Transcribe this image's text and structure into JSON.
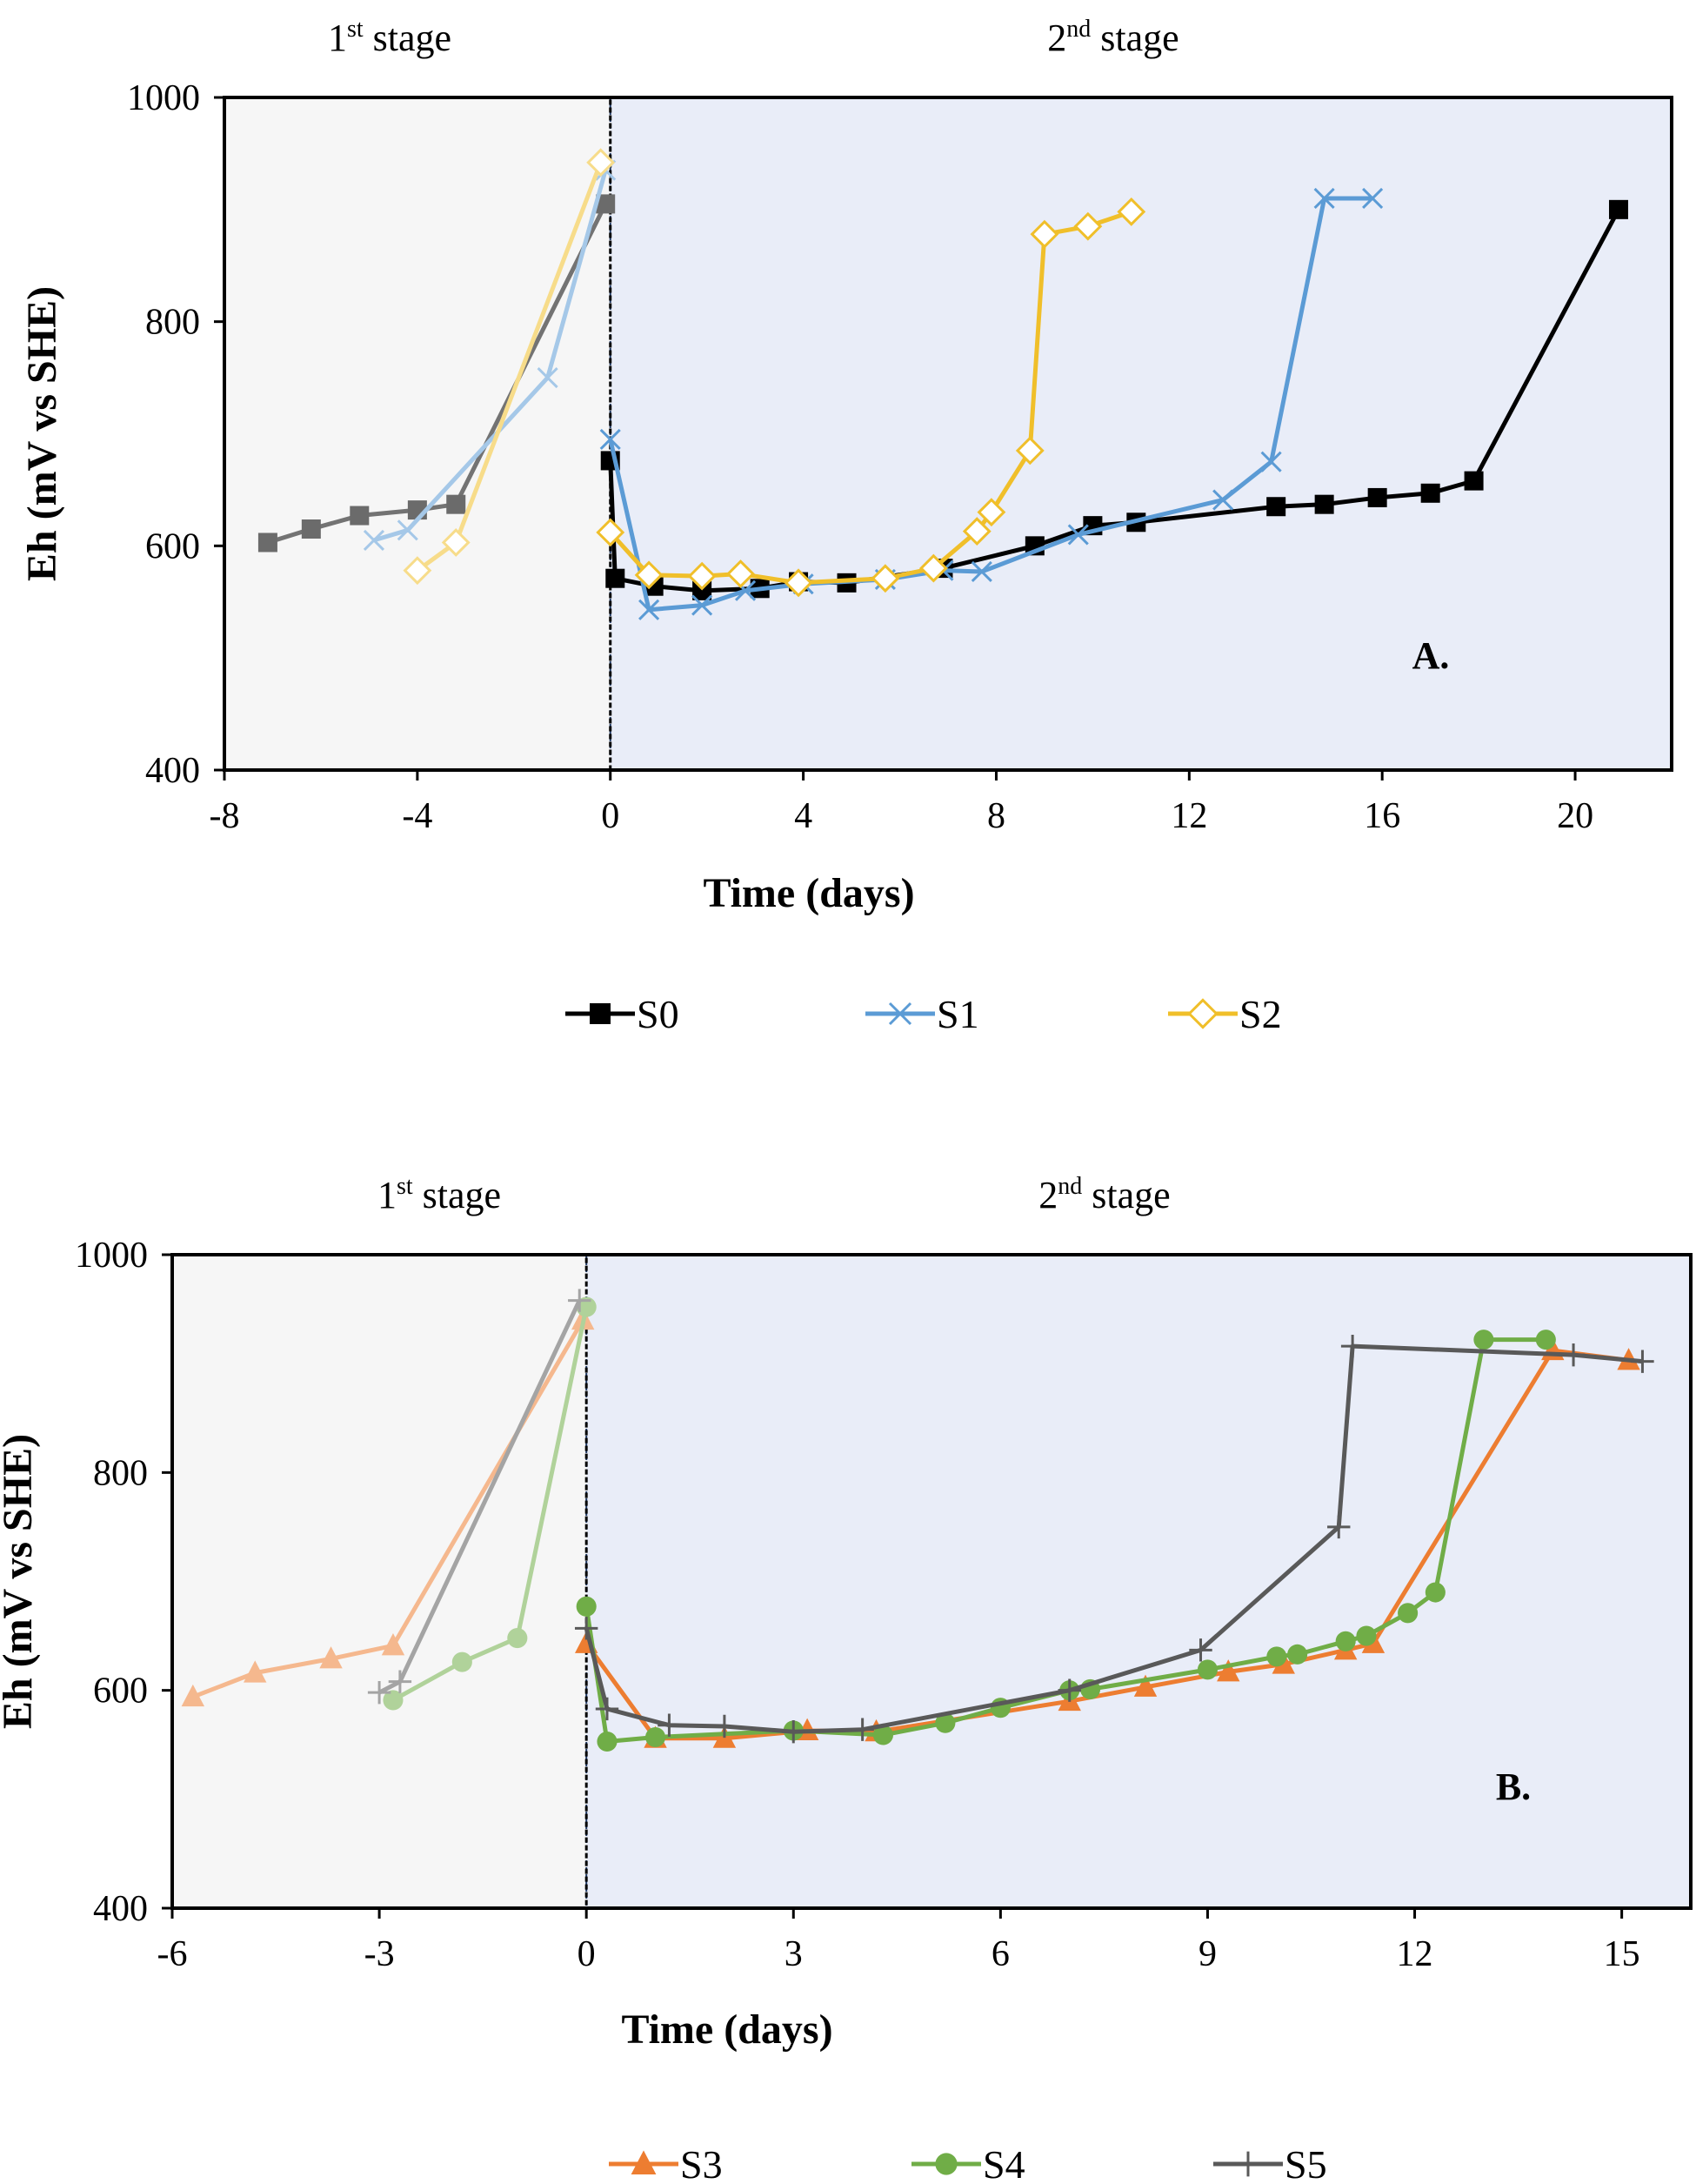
{
  "chart_data": [
    {
      "type": "line",
      "panel_label": "A.",
      "stage_labels": [
        {
          "base": "1",
          "sup": "st",
          "rest": " stage"
        },
        {
          "base": "2",
          "sup": "nd",
          "rest": " stage"
        }
      ],
      "xlabel": "Time (days)",
      "ylabel": "Eh (mV vs SHE)",
      "xlim": [
        -8,
        22
      ],
      "ylim": [
        400,
        1000
      ],
      "xticks": [
        -8,
        -4,
        0,
        4,
        8,
        12,
        16,
        20
      ],
      "yticks": [
        400,
        600,
        800,
        1000
      ],
      "legend_position": "bottom",
      "series": [
        {
          "name": "S0",
          "color": "#000000",
          "marker": "square",
          "stage1": [
            [
              -7.1,
              603
            ],
            [
              -6.2,
              615
            ],
            [
              -5.2,
              627
            ],
            [
              -4.0,
              632
            ],
            [
              -3.2,
              637
            ],
            [
              -0.1,
              905
            ]
          ],
          "stage2": [
            [
              0.0,
              676
            ],
            [
              0.1,
              571
            ],
            [
              0.9,
              564
            ],
            [
              1.9,
              560
            ],
            [
              3.1,
              562
            ],
            [
              3.9,
              568
            ],
            [
              4.9,
              567
            ],
            [
              6.9,
              580
            ],
            [
              8.8,
              600
            ],
            [
              10.0,
              618
            ],
            [
              10.9,
              621
            ],
            [
              13.8,
              635
            ],
            [
              14.8,
              637
            ],
            [
              15.9,
              643
            ],
            [
              17.0,
              647
            ],
            [
              17.9,
              658
            ],
            [
              20.9,
              900
            ]
          ]
        },
        {
          "name": "S1",
          "color": "#5b9bd5",
          "marker": "x",
          "stage1": [
            [
              -4.9,
              605
            ],
            [
              -4.2,
              614
            ],
            [
              -1.3,
              750
            ],
            [
              -0.1,
              935
            ]
          ],
          "stage2": [
            [
              0.0,
              695
            ],
            [
              0.8,
              543
            ],
            [
              1.9,
              547
            ],
            [
              2.8,
              560
            ],
            [
              4.0,
              566
            ],
            [
              5.7,
              570
            ],
            [
              6.9,
              578
            ],
            [
              7.7,
              577
            ],
            [
              9.7,
              610
            ],
            [
              12.7,
              641
            ],
            [
              13.7,
              675
            ],
            [
              14.8,
              910
            ],
            [
              15.8,
              910
            ]
          ]
        },
        {
          "name": "S2",
          "color": "#f0bf2a",
          "marker": "diamond",
          "stage1": [
            [
              -4.0,
              578
            ],
            [
              -3.2,
              603
            ],
            [
              -0.2,
              942
            ]
          ],
          "stage2": [
            [
              0.0,
              612
            ],
            [
              0.8,
              574
            ],
            [
              1.9,
              573
            ],
            [
              2.7,
              575
            ],
            [
              3.9,
              567
            ],
            [
              5.7,
              571
            ],
            [
              6.7,
              580
            ],
            [
              7.6,
              613
            ],
            [
              7.9,
              630
            ],
            [
              8.7,
              685
            ],
            [
              9.0,
              878
            ],
            [
              9.9,
              885
            ],
            [
              10.8,
              898
            ]
          ]
        }
      ],
      "legend": [
        "S0",
        "S1",
        "S2"
      ]
    },
    {
      "type": "line",
      "panel_label": "B.",
      "stage_labels": [
        {
          "base": "1",
          "sup": "st",
          "rest": " stage"
        },
        {
          "base": "2",
          "sup": "nd",
          "rest": " stage"
        }
      ],
      "xlabel": "Time (days)",
      "ylabel": "Eh (mV vs SHE)",
      "xlim": [
        -6,
        16
      ],
      "ylim": [
        400,
        1000
      ],
      "xticks": [
        -6,
        -3,
        0,
        3,
        6,
        9,
        12,
        15
      ],
      "yticks": [
        400,
        600,
        800,
        1000
      ],
      "legend_position": "bottom",
      "series": [
        {
          "name": "S3",
          "color": "#ed7d31",
          "marker": "triangle",
          "stage1": [
            [
              -5.7,
              594
            ],
            [
              -4.8,
              616
            ],
            [
              -3.7,
              629
            ],
            [
              -2.8,
              641
            ],
            [
              -0.05,
              940
            ]
          ],
          "stage2": [
            [
              0.0,
              643
            ],
            [
              1.0,
              556
            ],
            [
              2.0,
              556
            ],
            [
              3.2,
              563
            ],
            [
              4.2,
              562
            ],
            [
              7.0,
              590
            ],
            [
              8.1,
              603
            ],
            [
              9.3,
              617
            ],
            [
              10.1,
              624
            ],
            [
              11.0,
              637
            ],
            [
              11.4,
              643
            ],
            [
              14.0,
              912
            ],
            [
              15.1,
              903
            ]
          ]
        },
        {
          "name": "S4",
          "color": "#70ad47",
          "marker": "circle",
          "stage1": [
            [
              -2.8,
              591
            ],
            [
              -1.8,
              626
            ],
            [
              -1.0,
              648
            ],
            [
              0.0,
              952
            ]
          ],
          "stage2": [
            [
              0.0,
              677
            ],
            [
              0.3,
              553
            ],
            [
              1.0,
              557
            ],
            [
              3.0,
              563
            ],
            [
              4.3,
              559
            ],
            [
              5.2,
              570
            ],
            [
              6.0,
              584
            ],
            [
              7.0,
              600
            ],
            [
              7.3,
              601
            ],
            [
              9.0,
              619
            ],
            [
              10.0,
              631
            ],
            [
              10.3,
              633
            ],
            [
              11.0,
              645
            ],
            [
              11.3,
              650
            ],
            [
              11.9,
              671
            ],
            [
              12.3,
              690
            ],
            [
              13.0,
              922
            ],
            [
              13.9,
              922
            ]
          ]
        },
        {
          "name": "S5",
          "color": "#595959",
          "marker": "plus",
          "stage1": [
            [
              -3.0,
              598
            ],
            [
              -2.7,
              608
            ],
            [
              -0.1,
              958
            ]
          ],
          "stage2": [
            [
              0.0,
              657
            ],
            [
              0.3,
              583
            ],
            [
              1.2,
              568
            ],
            [
              2.0,
              567
            ],
            [
              3.0,
              562
            ],
            [
              4.0,
              564
            ],
            [
              7.0,
              600
            ],
            [
              8.9,
              637
            ],
            [
              10.9,
              750
            ],
            [
              11.1,
              916
            ],
            [
              14.3,
              908
            ],
            [
              15.3,
              902
            ]
          ]
        }
      ],
      "legend": [
        "S3",
        "S4",
        "S5"
      ]
    }
  ]
}
